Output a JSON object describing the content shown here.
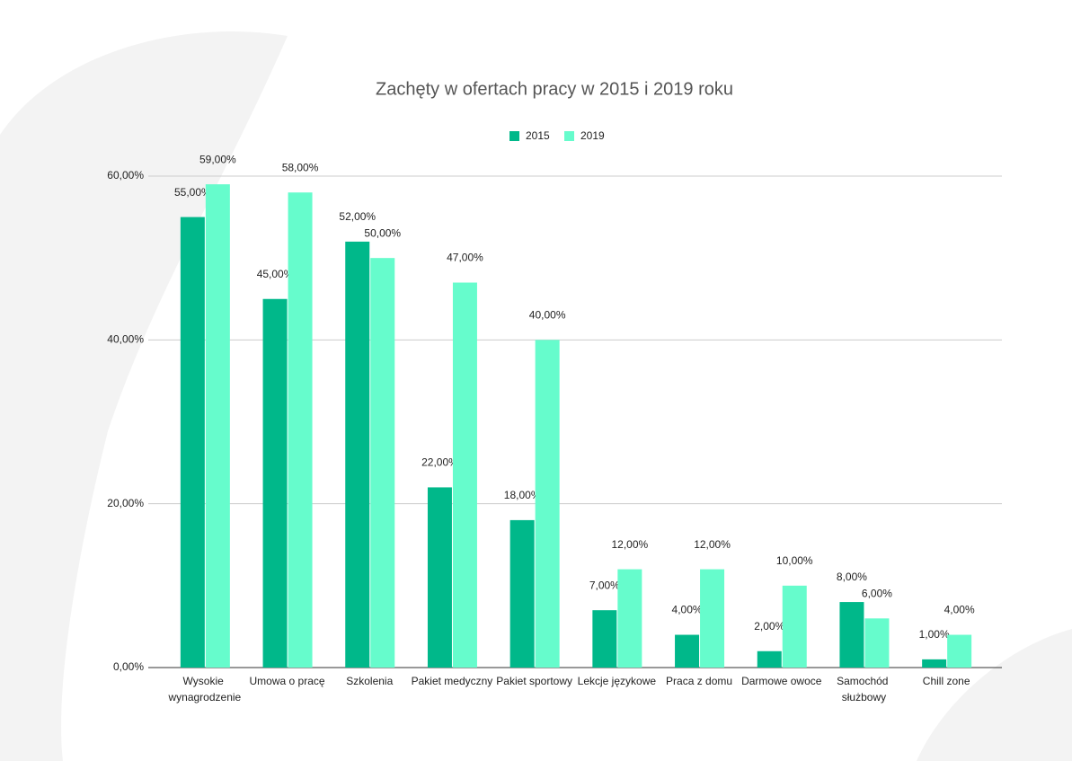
{
  "chart_data": {
    "type": "bar",
    "title": "Zachęty w ofertach pracy w 2015 i 2019 roku",
    "categories": [
      "Wysokie wynagrodzenie",
      "Umowa o pracę",
      "Szkolenia",
      "Pakiet medyczny",
      "Pakiet sportowy",
      "Lekcje językowe",
      "Praca z domu",
      "Darmowe owoce",
      "Samochód służbowy",
      "Chill zone"
    ],
    "series": [
      {
        "name": "2015",
        "color": "#00b88a",
        "values": [
          55,
          45,
          52,
          22,
          18,
          7,
          4,
          2,
          8,
          1
        ],
        "value_labels": [
          "55,00%",
          "45,00%",
          "52,00%",
          "22,00%",
          "18,00%",
          "7,00%",
          "4,00%",
          "2,00%",
          "8,00%",
          "1,00%"
        ]
      },
      {
        "name": "2019",
        "color": "#66fccc",
        "values": [
          59,
          58,
          50,
          47,
          40,
          12,
          12,
          10,
          6,
          4
        ],
        "value_labels": [
          "59,00%",
          "58,00%",
          "50,00%",
          "47,00%",
          "40,00%",
          "12,00%",
          "12,00%",
          "10,00%",
          "6,00%",
          "4,00%"
        ]
      }
    ],
    "ylim": [
      0,
      60
    ],
    "yticks": [
      {
        "value": 0,
        "label": "0,00%"
      },
      {
        "value": 20,
        "label": "20,00%"
      },
      {
        "value": 40,
        "label": "40,00%"
      },
      {
        "value": 60,
        "label": "60,00%"
      }
    ],
    "grid": true,
    "legend": "top"
  }
}
